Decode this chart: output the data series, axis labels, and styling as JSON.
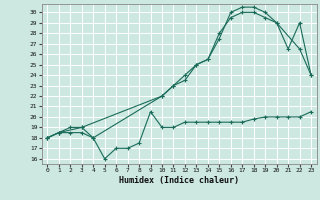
{
  "xlabel": "Humidex (Indice chaleur)",
  "bg_color": "#cce8e0",
  "grid_color": "#ffffff",
  "line_color": "#1a6b5a",
  "xlim": [
    -0.5,
    23.5
  ],
  "ylim": [
    15.5,
    30.8
  ],
  "xticks": [
    0,
    1,
    2,
    3,
    4,
    5,
    6,
    7,
    8,
    9,
    10,
    11,
    12,
    13,
    14,
    15,
    16,
    17,
    18,
    19,
    20,
    21,
    22,
    23
  ],
  "yticks": [
    16,
    17,
    18,
    19,
    20,
    21,
    22,
    23,
    24,
    25,
    26,
    27,
    28,
    29,
    30
  ],
  "line1_x": [
    0,
    1,
    2,
    3,
    4,
    5,
    6,
    7,
    8,
    9,
    10,
    11,
    12,
    13,
    14,
    15,
    16,
    17,
    18,
    19,
    20,
    21,
    22,
    23
  ],
  "line1_y": [
    18,
    18.5,
    18.5,
    18.5,
    18,
    16,
    17,
    17,
    17.5,
    20.5,
    19,
    19,
    19.5,
    19.5,
    19.5,
    19.5,
    19.5,
    19.5,
    19.8,
    20,
    20,
    20,
    20,
    20.5
  ],
  "line2_x": [
    0,
    1,
    2,
    3,
    4,
    10,
    11,
    12,
    13,
    14,
    15,
    16,
    17,
    18,
    19,
    20,
    21,
    22,
    23
  ],
  "line2_y": [
    18,
    18.5,
    19,
    19,
    18,
    22,
    23,
    23.5,
    25,
    25.5,
    28,
    29.5,
    30,
    30,
    29.5,
    29,
    26.5,
    29,
    24
  ],
  "line3_x": [
    0,
    1,
    3,
    10,
    11,
    12,
    13,
    14,
    15,
    16,
    17,
    18,
    19,
    20,
    22,
    23
  ],
  "line3_y": [
    18,
    18.5,
    19,
    22,
    23,
    24,
    25,
    25.5,
    27.5,
    30,
    30.5,
    30.5,
    30,
    29,
    26.5,
    24
  ]
}
